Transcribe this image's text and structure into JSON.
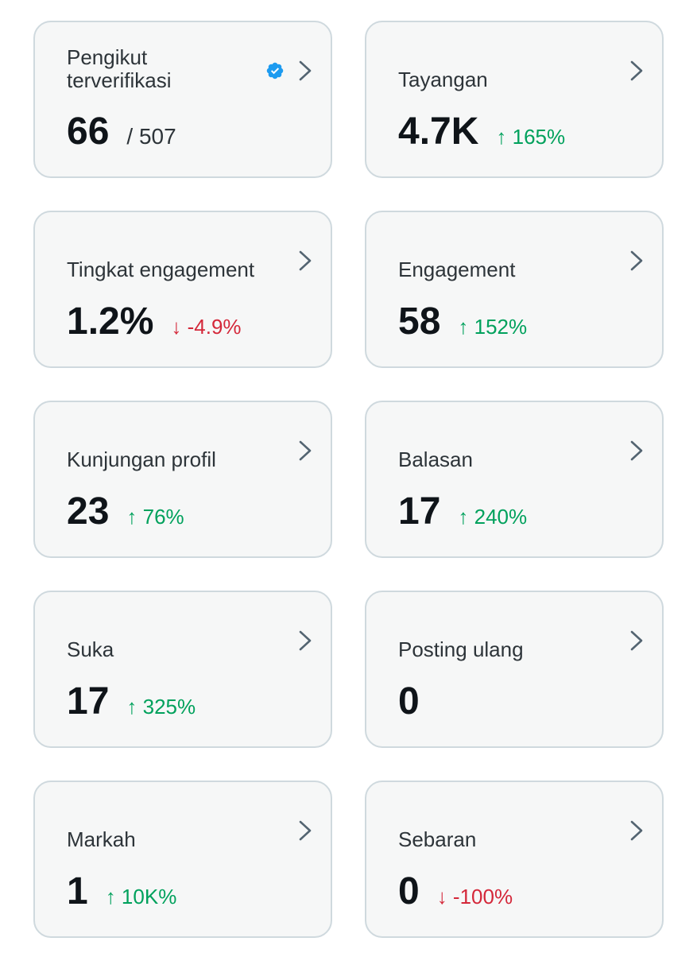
{
  "cards": [
    {
      "id": "verified-followers",
      "title": "Pengikut terverifikasi",
      "value": "66",
      "total": "/ 507",
      "change": "",
      "direction": "none",
      "verified_icon": "verified-badge-icon"
    },
    {
      "id": "impressions",
      "title": "Tayangan",
      "value": "4.7K",
      "total": "",
      "change": "↑ 165%",
      "direction": "up"
    },
    {
      "id": "engagement-rate",
      "title": "Tingkat engagement",
      "value": "1.2%",
      "total": "",
      "change": "↓ -4.9%",
      "direction": "down"
    },
    {
      "id": "engagements",
      "title": "Engagement",
      "value": "58",
      "total": "",
      "change": "↑ 152%",
      "direction": "up"
    },
    {
      "id": "profile-visits",
      "title": "Kunjungan profil",
      "value": "23",
      "total": "",
      "change": "↑ 76%",
      "direction": "up"
    },
    {
      "id": "replies",
      "title": "Balasan",
      "value": "17",
      "total": "",
      "change": "↑ 240%",
      "direction": "up"
    },
    {
      "id": "likes",
      "title": "Suka",
      "value": "17",
      "total": "",
      "change": "↑ 325%",
      "direction": "up"
    },
    {
      "id": "reposts",
      "title": "Posting ulang",
      "value": "0",
      "total": "",
      "change": "",
      "direction": "none"
    },
    {
      "id": "bookmarks",
      "title": "Markah",
      "value": "1",
      "total": "",
      "change": "↑ 10K%",
      "direction": "up"
    },
    {
      "id": "shares",
      "title": "Sebaran",
      "value": "0",
      "total": "",
      "change": "↓ -100%",
      "direction": "down"
    }
  ],
  "colors": {
    "card_bg": "#f6f7f7",
    "card_border": "#cfd9de",
    "title": "#2d3439",
    "value": "#0f1419",
    "up": "#00a15c",
    "down": "#d4283a",
    "verified": "#1d9bf0",
    "chevron": "#536471"
  },
  "icons": {
    "chevron": "chevron-right-icon",
    "verified": "verified-badge-icon"
  }
}
